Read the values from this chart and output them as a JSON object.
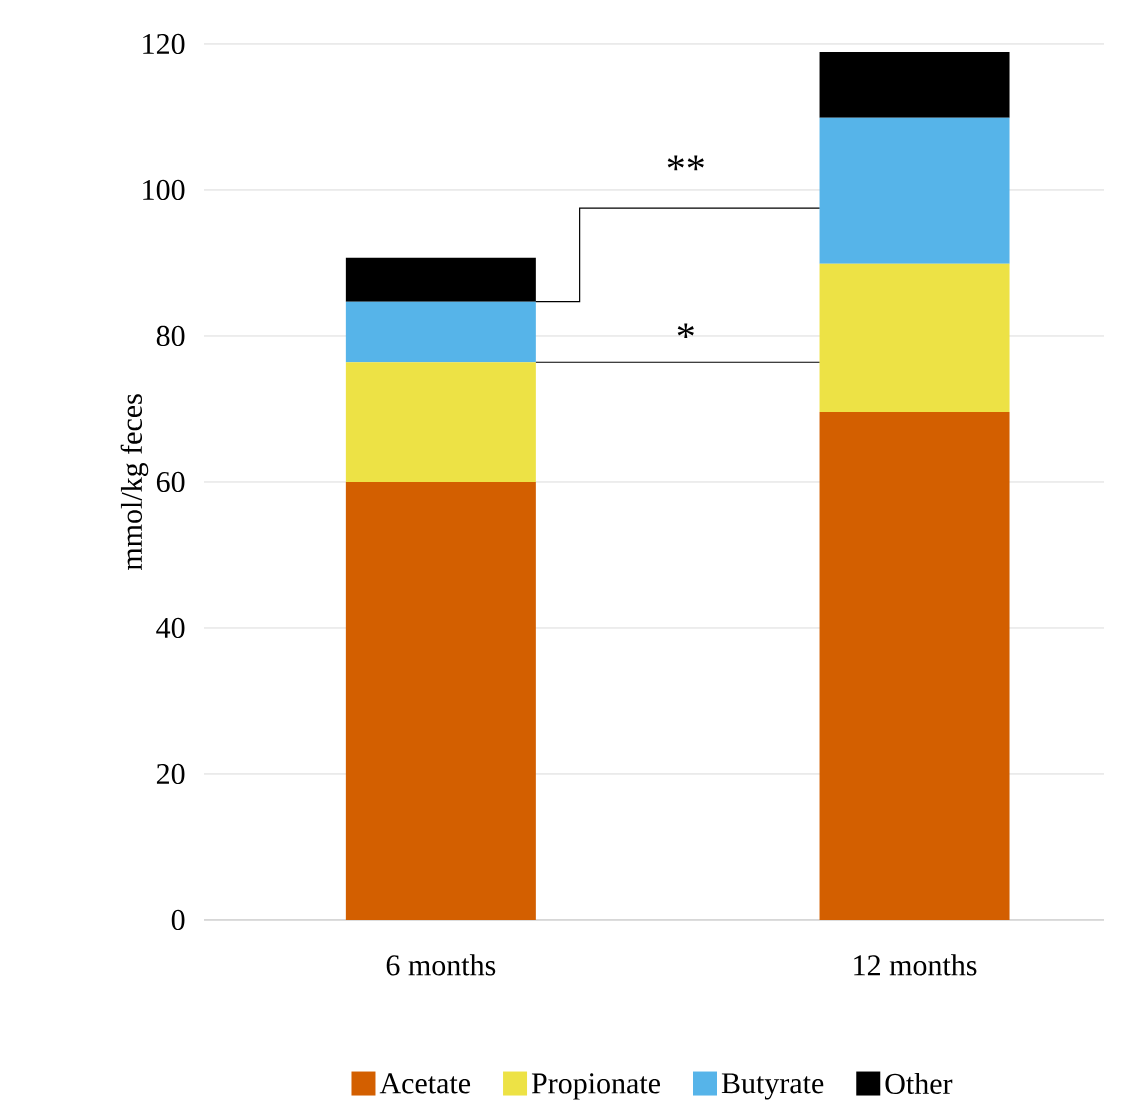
{
  "chart_data": {
    "type": "bar",
    "stacked": true,
    "categories": [
      "6 months",
      "12 months"
    ],
    "ylabel": "mmol/kg feces",
    "series": [
      {
        "name": "Acetate",
        "color": "#d35f00",
        "values": [
          60,
          69.6
        ]
      },
      {
        "name": "Propionate",
        "color": "#ede245",
        "values": [
          16.4,
          20.3
        ]
      },
      {
        "name": "Butyrate",
        "color": "#56b4e9",
        "values": [
          8.3,
          20
        ]
      },
      {
        "name": "Other",
        "color": "#000000",
        "values": [
          6,
          9
        ]
      }
    ],
    "ylim": [
      0,
      120
    ],
    "yticks": [
      0,
      20,
      40,
      60,
      80,
      100,
      120
    ],
    "grid": "y",
    "legend": "bottom",
    "annotations": [
      "**",
      "*"
    ]
  }
}
